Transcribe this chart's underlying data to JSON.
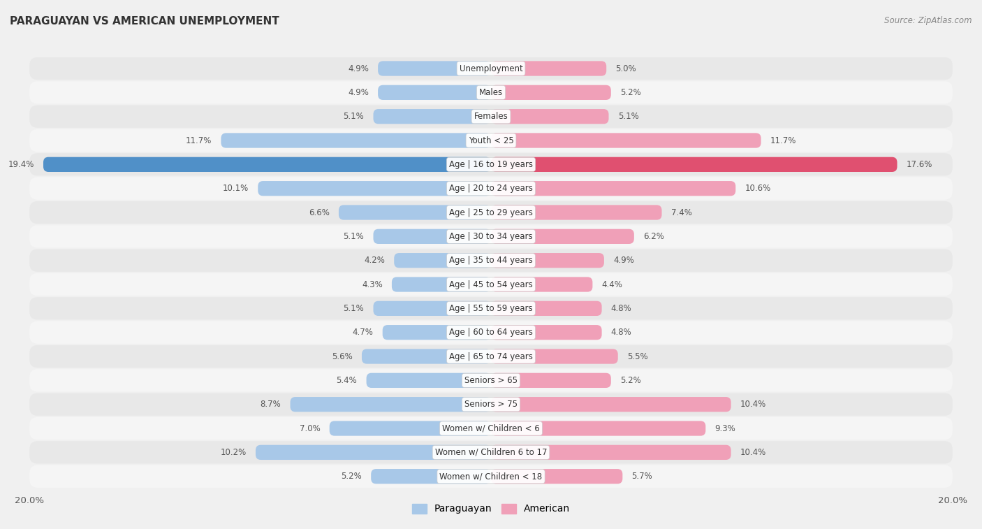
{
  "title": "PARAGUAYAN VS AMERICAN UNEMPLOYMENT",
  "source": "Source: ZipAtlas.com",
  "categories": [
    "Unemployment",
    "Males",
    "Females",
    "Youth < 25",
    "Age | 16 to 19 years",
    "Age | 20 to 24 years",
    "Age | 25 to 29 years",
    "Age | 30 to 34 years",
    "Age | 35 to 44 years",
    "Age | 45 to 54 years",
    "Age | 55 to 59 years",
    "Age | 60 to 64 years",
    "Age | 65 to 74 years",
    "Seniors > 65",
    "Seniors > 75",
    "Women w/ Children < 6",
    "Women w/ Children 6 to 17",
    "Women w/ Children < 18"
  ],
  "paraguayan": [
    4.9,
    4.9,
    5.1,
    11.7,
    19.4,
    10.1,
    6.6,
    5.1,
    4.2,
    4.3,
    5.1,
    4.7,
    5.6,
    5.4,
    8.7,
    7.0,
    10.2,
    5.2
  ],
  "american": [
    5.0,
    5.2,
    5.1,
    11.7,
    17.6,
    10.6,
    7.4,
    6.2,
    4.9,
    4.4,
    4.8,
    4.8,
    5.5,
    5.2,
    10.4,
    9.3,
    10.4,
    5.7
  ],
  "paraguayan_color": "#a8c8e8",
  "american_color": "#f0a0b8",
  "highlight_paraguayan_color": "#5090c8",
  "highlight_american_color": "#e05070",
  "max_val": 20.0,
  "bg_color": "#f0f0f0",
  "row_color_even": "#e8e8e8",
  "row_color_odd": "#f5f5f5",
  "label_fontsize": 8.5,
  "title_fontsize": 11,
  "legend_fontsize": 10,
  "bar_height": 0.62,
  "value_fontsize": 8.5
}
